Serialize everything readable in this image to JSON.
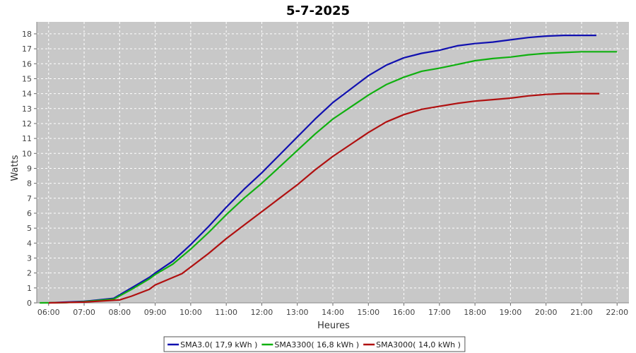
{
  "chart_data": {
    "type": "line",
    "title": "5-7-2025",
    "xlabel": "Heures",
    "ylabel": "Watts",
    "x_unit": "time (HH:MM)",
    "xlim": [
      "05:40",
      "22:20"
    ],
    "ylim": [
      0,
      18.8
    ],
    "x_ticks": [
      "06:00",
      "07:00",
      "08:00",
      "09:00",
      "10:00",
      "11:00",
      "12:00",
      "13:00",
      "14:00",
      "15:00",
      "16:00",
      "17:00",
      "18:00",
      "19:00",
      "20:00",
      "21:00",
      "22:00"
    ],
    "y_ticks": [
      0,
      1,
      2,
      3,
      4,
      5,
      6,
      7,
      8,
      9,
      10,
      11,
      12,
      13,
      14,
      15,
      16,
      17,
      18
    ],
    "grid": true,
    "legend_position": "bottom",
    "background": "#c8c8c8",
    "series": [
      {
        "name": "SMA3.0( 17,9 kWh )",
        "color": "#1010b0",
        "points": [
          [
            "06:00",
            0
          ],
          [
            "07:00",
            0.1
          ],
          [
            "07:50",
            0.3
          ],
          [
            "08:20",
            1.0
          ],
          [
            "08:50",
            1.7
          ],
          [
            "09:00",
            2.0
          ],
          [
            "09:30",
            2.8
          ],
          [
            "10:00",
            3.9
          ],
          [
            "10:30",
            5.1
          ],
          [
            "11:00",
            6.4
          ],
          [
            "11:30",
            7.6
          ],
          [
            "12:00",
            8.7
          ],
          [
            "12:30",
            9.9
          ],
          [
            "13:00",
            11.1
          ],
          [
            "13:30",
            12.3
          ],
          [
            "14:00",
            13.4
          ],
          [
            "14:30",
            14.3
          ],
          [
            "15:00",
            15.2
          ],
          [
            "15:30",
            15.9
          ],
          [
            "16:00",
            16.4
          ],
          [
            "16:30",
            16.7
          ],
          [
            "17:00",
            16.9
          ],
          [
            "17:30",
            17.2
          ],
          [
            "18:00",
            17.35
          ],
          [
            "18:30",
            17.45
          ],
          [
            "19:00",
            17.6
          ],
          [
            "19:30",
            17.75
          ],
          [
            "20:00",
            17.85
          ],
          [
            "20:30",
            17.9
          ],
          [
            "21:00",
            17.9
          ],
          [
            "21:25",
            17.9
          ]
        ]
      },
      {
        "name": "SMA3300( 16,8 kWh )",
        "color": "#10b010",
        "points": [
          [
            "05:45",
            0
          ],
          [
            "06:30",
            0.02
          ],
          [
            "07:00",
            0.08
          ],
          [
            "07:50",
            0.25
          ],
          [
            "08:20",
            0.9
          ],
          [
            "08:50",
            1.6
          ],
          [
            "09:00",
            1.9
          ],
          [
            "09:30",
            2.6
          ],
          [
            "10:00",
            3.6
          ],
          [
            "10:30",
            4.7
          ],
          [
            "11:00",
            5.9
          ],
          [
            "11:30",
            7.0
          ],
          [
            "12:00",
            8.0
          ],
          [
            "12:30",
            9.1
          ],
          [
            "13:00",
            10.2
          ],
          [
            "13:30",
            11.3
          ],
          [
            "14:00",
            12.3
          ],
          [
            "14:30",
            13.1
          ],
          [
            "15:00",
            13.9
          ],
          [
            "15:30",
            14.6
          ],
          [
            "16:00",
            15.1
          ],
          [
            "16:30",
            15.5
          ],
          [
            "17:00",
            15.7
          ],
          [
            "17:30",
            15.95
          ],
          [
            "18:00",
            16.2
          ],
          [
            "18:30",
            16.35
          ],
          [
            "19:00",
            16.45
          ],
          [
            "19:30",
            16.6
          ],
          [
            "20:00",
            16.7
          ],
          [
            "20:30",
            16.75
          ],
          [
            "21:00",
            16.8
          ],
          [
            "22:00",
            16.8
          ]
        ]
      },
      {
        "name": "SMA3000( 14,0 kWh )",
        "color": "#b01010",
        "points": [
          [
            "06:00",
            0
          ],
          [
            "07:00",
            0.05
          ],
          [
            "08:00",
            0.2
          ],
          [
            "08:20",
            0.45
          ],
          [
            "08:50",
            0.9
          ],
          [
            "09:00",
            1.2
          ],
          [
            "09:30",
            1.7
          ],
          [
            "09:45",
            1.95
          ],
          [
            "10:00",
            2.4
          ],
          [
            "10:30",
            3.3
          ],
          [
            "11:00",
            4.3
          ],
          [
            "11:30",
            5.2
          ],
          [
            "12:00",
            6.1
          ],
          [
            "12:30",
            7.0
          ],
          [
            "13:00",
            7.9
          ],
          [
            "13:30",
            8.9
          ],
          [
            "14:00",
            9.8
          ],
          [
            "14:30",
            10.6
          ],
          [
            "15:00",
            11.4
          ],
          [
            "15:30",
            12.1
          ],
          [
            "16:00",
            12.6
          ],
          [
            "16:30",
            12.95
          ],
          [
            "17:00",
            13.15
          ],
          [
            "17:30",
            13.35
          ],
          [
            "18:00",
            13.5
          ],
          [
            "18:30",
            13.6
          ],
          [
            "19:00",
            13.7
          ],
          [
            "19:30",
            13.85
          ],
          [
            "20:00",
            13.95
          ],
          [
            "20:30",
            14.0
          ],
          [
            "21:00",
            14.0
          ],
          [
            "21:30",
            14.0
          ]
        ]
      }
    ]
  }
}
